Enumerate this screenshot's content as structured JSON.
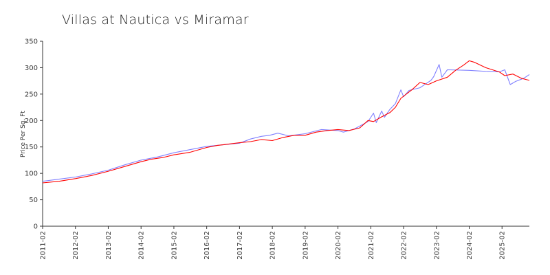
{
  "chart_data": {
    "type": "line",
    "title": "Villas at Nautica vs Miramar",
    "xlabel": "",
    "ylabel": "Price Per Sq. Ft",
    "ylim": [
      0,
      350
    ],
    "y_ticks": [
      0,
      50,
      100,
      150,
      200,
      250,
      300,
      350
    ],
    "x_tick_labels": [
      "2011-02",
      "2012-02",
      "2013-02",
      "2014-02",
      "2015-02",
      "2016-02",
      "2017-02",
      "2018-02",
      "2019-02",
      "2020-02",
      "2021-02",
      "2022-02",
      "2023-02",
      "2024-02",
      "2025-02"
    ],
    "x_start": "2011-02",
    "x_end": "2025-12",
    "grid": false,
    "colors": {
      "series_1": "#8080ff",
      "series_2": "#ff0000"
    },
    "series": [
      {
        "points": [
          [
            "2011-02",
            85
          ],
          [
            "2011-08",
            89
          ],
          [
            "2012-02",
            93
          ],
          [
            "2012-08",
            99
          ],
          [
            "2013-02",
            106
          ],
          [
            "2013-08",
            116
          ],
          [
            "2014-02",
            125
          ],
          [
            "2014-08",
            131
          ],
          [
            "2015-02",
            139
          ],
          [
            "2015-08",
            145
          ],
          [
            "2016-02",
            151
          ],
          [
            "2016-08",
            154
          ],
          [
            "2017-02",
            157
          ],
          [
            "2017-06",
            165
          ],
          [
            "2017-10",
            170
          ],
          [
            "2018-01",
            172
          ],
          [
            "2018-04",
            176
          ],
          [
            "2018-08",
            171
          ],
          [
            "2019-02",
            175
          ],
          [
            "2019-08",
            183
          ],
          [
            "2020-02",
            181
          ],
          [
            "2020-04",
            178
          ],
          [
            "2020-08",
            184
          ],
          [
            "2021-01",
            198
          ],
          [
            "2021-03",
            214
          ],
          [
            "2021-04",
            196
          ],
          [
            "2021-06",
            218
          ],
          [
            "2021-07",
            206
          ],
          [
            "2021-09",
            221
          ],
          [
            "2021-11",
            232
          ],
          [
            "2022-01",
            258
          ],
          [
            "2022-02",
            245
          ],
          [
            "2022-04",
            257
          ],
          [
            "2022-08",
            262
          ],
          [
            "2022-12",
            276
          ],
          [
            "2023-01",
            283
          ],
          [
            "2023-03",
            306
          ],
          [
            "2023-04",
            282
          ],
          [
            "2023-06",
            296
          ],
          [
            "2024-02",
            295
          ],
          [
            "2024-08",
            293
          ],
          [
            "2025-01",
            292
          ],
          [
            "2025-03",
            296
          ],
          [
            "2025-05",
            268
          ],
          [
            "2025-07",
            274
          ],
          [
            "2025-10",
            280
          ],
          [
            "2025-12",
            287
          ]
        ]
      },
      {
        "points": [
          [
            "2011-02",
            82
          ],
          [
            "2011-08",
            85
          ],
          [
            "2012-02",
            90
          ],
          [
            "2012-08",
            96
          ],
          [
            "2013-02",
            104
          ],
          [
            "2013-08",
            113
          ],
          [
            "2014-02",
            122
          ],
          [
            "2014-06",
            127
          ],
          [
            "2014-10",
            130
          ],
          [
            "2015-02",
            135
          ],
          [
            "2015-08",
            140
          ],
          [
            "2016-02",
            149
          ],
          [
            "2016-04",
            151
          ],
          [
            "2016-06",
            153
          ],
          [
            "2016-08",
            154
          ],
          [
            "2017-02",
            158
          ],
          [
            "2017-06",
            160
          ],
          [
            "2017-10",
            164
          ],
          [
            "2018-02",
            162
          ],
          [
            "2018-06",
            168
          ],
          [
            "2018-10",
            172
          ],
          [
            "2019-02",
            172
          ],
          [
            "2019-06",
            178
          ],
          [
            "2019-10",
            181
          ],
          [
            "2020-02",
            183
          ],
          [
            "2020-06",
            181
          ],
          [
            "2020-10",
            186
          ],
          [
            "2021-01",
            200
          ],
          [
            "2021-03",
            198
          ],
          [
            "2021-06",
            207
          ],
          [
            "2021-09",
            215
          ],
          [
            "2021-11",
            225
          ],
          [
            "2022-01",
            242
          ],
          [
            "2022-05",
            258
          ],
          [
            "2022-08",
            272
          ],
          [
            "2022-11",
            268
          ],
          [
            "2023-02",
            275
          ],
          [
            "2023-06",
            282
          ],
          [
            "2023-09",
            295
          ],
          [
            "2023-12",
            305
          ],
          [
            "2024-02",
            313
          ],
          [
            "2024-04",
            310
          ],
          [
            "2024-08",
            300
          ],
          [
            "2025-01",
            292
          ],
          [
            "2025-03",
            285
          ],
          [
            "2025-06",
            288
          ],
          [
            "2025-09",
            280
          ],
          [
            "2025-12",
            276
          ]
        ]
      }
    ]
  }
}
